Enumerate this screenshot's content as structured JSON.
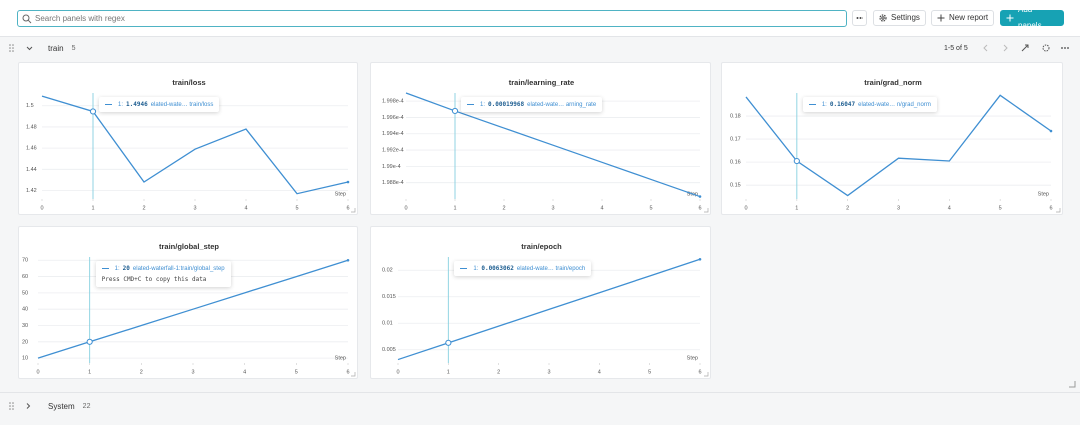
{
  "toolbar": {
    "search_placeholder": "Search panels with regex",
    "settings": "Settings",
    "new_report": "New report",
    "add_panels": "Add panels"
  },
  "sections": [
    {
      "name": "train",
      "count": 5,
      "pagination": "1-5 of 5"
    },
    {
      "name": "System",
      "count": 22
    }
  ],
  "chart_data": [
    {
      "type": "line",
      "title": "train/loss",
      "x_label": "Step",
      "x": [
        0,
        1,
        2,
        3,
        4,
        5,
        6
      ],
      "xlim": [
        0,
        6
      ],
      "xticks": [
        0,
        1,
        2,
        3,
        4,
        5,
        6
      ],
      "ylim": [
        1.412,
        1.512
      ],
      "yticks": [
        1.42,
        1.44,
        1.46,
        1.48,
        1.5
      ],
      "grid": true,
      "series": [
        {
          "color": "#3f8fd2",
          "values": [
            1.509,
            1.4946,
            1.428,
            1.459,
            1.478,
            1.417,
            1.428
          ]
        }
      ],
      "tooltip": {
        "step": "1:",
        "run": "elated-wate… train/loss"
      }
    },
    {
      "type": "line",
      "title": "train/learning_rate",
      "x_label": "Step",
      "x": [
        0,
        1,
        2,
        3,
        4,
        5,
        6
      ],
      "xlim": [
        0,
        6
      ],
      "xticks": [
        0,
        1,
        2,
        3,
        4,
        5,
        6
      ],
      "ylim": [
        0.0001986,
        0.0001999
      ],
      "yticks": [
        {
          "value": 0.0001988,
          "label": "1.988e-4"
        },
        {
          "value": 0.000199,
          "label": "1.99e-4"
        },
        {
          "value": 0.0001992,
          "label": "1.992e-4"
        },
        {
          "value": 0.0001994,
          "label": "1.994e-4"
        },
        {
          "value": 0.0001996,
          "label": "1.996e-4"
        },
        {
          "value": 0.0001998,
          "label": "1.998e-4"
        }
      ],
      "grid": true,
      "series": [
        {
          "color": "#3f8fd2",
          "values": [
            0.0001999,
            0.00019968,
            0.00019947,
            0.00019926,
            0.00019905,
            0.00019884,
            0.00019863
          ]
        }
      ],
      "tooltip": {
        "step": "1:",
        "run": "elated-wate… arning_rate"
      }
    },
    {
      "type": "line",
      "title": "train/grad_norm",
      "x_label": "Step",
      "x": [
        0,
        1,
        2,
        3,
        4,
        5,
        6
      ],
      "xlim": [
        0,
        6
      ],
      "xticks": [
        0,
        1,
        2,
        3,
        4,
        5,
        6
      ],
      "ylim": [
        0.144,
        0.19
      ],
      "yticks": [
        0.15,
        0.16,
        0.17,
        0.18
      ],
      "grid": true,
      "series": [
        {
          "color": "#3f8fd2",
          "values": [
            0.1883,
            0.16047,
            0.1455,
            0.1617,
            0.1605,
            0.189,
            0.1735
          ]
        }
      ],
      "tooltip": {
        "step": "1:",
        "run": "elated-wate… n/grad_norm"
      }
    },
    {
      "type": "line",
      "title": "train/global_step",
      "x_label": "Step",
      "x": [
        0,
        1,
        2,
        3,
        4,
        5,
        6
      ],
      "xlim": [
        0,
        6
      ],
      "xticks": [
        0,
        1,
        2,
        3,
        4,
        5,
        6
      ],
      "ylim": [
        7,
        72
      ],
      "yticks": [
        10,
        20,
        30,
        40,
        50,
        60,
        70
      ],
      "grid": true,
      "series": [
        {
          "color": "#3f8fd2",
          "values": [
            10,
            20,
            30,
            40,
            50,
            60,
            70
          ]
        }
      ],
      "tooltip": {
        "step": "1:",
        "run": "elated-waterfall-1:train/global_step",
        "hint": "Press CMD+C to copy this data"
      }
    },
    {
      "type": "line",
      "title": "train/epoch",
      "x_label": "Step",
      "x": [
        0,
        1,
        2,
        3,
        4,
        5,
        6
      ],
      "xlim": [
        0,
        6
      ],
      "xticks": [
        0,
        1,
        2,
        3,
        4,
        5,
        6
      ],
      "ylim": [
        0.0025,
        0.0225
      ],
      "yticks": [
        0.005,
        0.01,
        0.015,
        0.02
      ],
      "grid": true,
      "series": [
        {
          "color": "#3f8fd2",
          "values": [
            0.00315,
            0.0063062,
            0.00946,
            0.01261,
            0.01576,
            0.01892,
            0.02207
          ]
        }
      ],
      "tooltip": {
        "step": "1:",
        "run": "elated-wate… train/epoch"
      }
    }
  ]
}
